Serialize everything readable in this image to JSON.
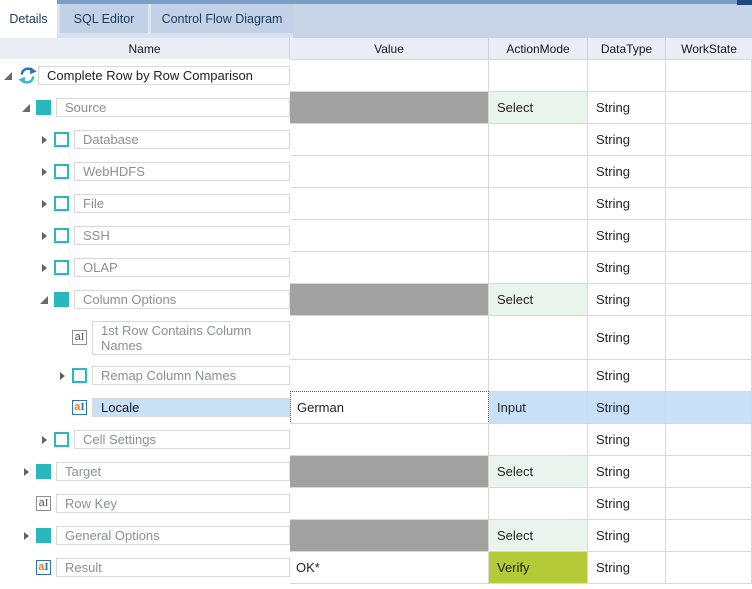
{
  "tabs": [
    {
      "label": "Details",
      "active": true
    },
    {
      "label": "SQL Editor",
      "active": false
    },
    {
      "label": "Control Flow Diagram",
      "active": false
    }
  ],
  "table": {
    "columns": [
      "Name",
      "Value",
      "ActionMode",
      "DataType",
      "WorkState"
    ],
    "rows": [
      {
        "name": "Complete Row by Row Comparison",
        "level": 0,
        "icon": "refresh",
        "expander": "expanded",
        "value": "",
        "value_style": "plain",
        "action_mode": "",
        "action_style": "none",
        "data_type": "",
        "work_state": "",
        "selected": false,
        "emphasis": true,
        "tall": false
      },
      {
        "name": "Source",
        "level": 1,
        "icon": "module-filled",
        "expander": "expanded",
        "value": "",
        "value_style": "gray",
        "action_mode": "Select",
        "action_style": "select",
        "data_type": "String",
        "work_state": "",
        "selected": false,
        "emphasis": false,
        "tall": false
      },
      {
        "name": "Database",
        "level": 2,
        "icon": "module-outline",
        "expander": "collapsed",
        "value": "",
        "value_style": "plain",
        "action_mode": "",
        "action_style": "none",
        "data_type": "String",
        "work_state": "",
        "selected": false,
        "emphasis": false,
        "tall": false
      },
      {
        "name": "WebHDFS",
        "level": 2,
        "icon": "module-outline",
        "expander": "collapsed",
        "value": "",
        "value_style": "plain",
        "action_mode": "",
        "action_style": "none",
        "data_type": "String",
        "work_state": "",
        "selected": false,
        "emphasis": false,
        "tall": false
      },
      {
        "name": "File",
        "level": 2,
        "icon": "module-outline",
        "expander": "collapsed",
        "value": "",
        "value_style": "plain",
        "action_mode": "",
        "action_style": "none",
        "data_type": "String",
        "work_state": "",
        "selected": false,
        "emphasis": false,
        "tall": false
      },
      {
        "name": "SSH",
        "level": 2,
        "icon": "module-outline",
        "expander": "collapsed",
        "value": "",
        "value_style": "plain",
        "action_mode": "",
        "action_style": "none",
        "data_type": "String",
        "work_state": "",
        "selected": false,
        "emphasis": false,
        "tall": false
      },
      {
        "name": "OLAP",
        "level": 2,
        "icon": "module-outline",
        "expander": "collapsed",
        "value": "",
        "value_style": "plain",
        "action_mode": "",
        "action_style": "none",
        "data_type": "String",
        "work_state": "",
        "selected": false,
        "emphasis": false,
        "tall": false
      },
      {
        "name": "Column Options",
        "level": 2,
        "icon": "module-filled",
        "expander": "expanded",
        "value": "",
        "value_style": "gray",
        "action_mode": "Select",
        "action_style": "select",
        "data_type": "String",
        "work_state": "",
        "selected": false,
        "emphasis": false,
        "tall": false
      },
      {
        "name": "1st Row Contains Column Names",
        "level": 3,
        "icon": "value-attribute",
        "expander": "none",
        "value": "",
        "value_style": "plain",
        "action_mode": "",
        "action_style": "none",
        "data_type": "String",
        "work_state": "",
        "selected": false,
        "emphasis": false,
        "tall": true
      },
      {
        "name": "Remap Column Names",
        "level": 3,
        "icon": "module-outline",
        "expander": "collapsed",
        "value": "",
        "value_style": "plain",
        "action_mode": "",
        "action_style": "none",
        "data_type": "String",
        "work_state": "",
        "selected": false,
        "emphasis": false,
        "tall": false
      },
      {
        "name": "Locale",
        "level": 3,
        "icon": "value-attribute-active",
        "expander": "none",
        "value": "German",
        "value_style": "edit",
        "action_mode": "Input",
        "action_style": "none",
        "data_type": "String",
        "work_state": "",
        "selected": true,
        "emphasis": false,
        "tall": false
      },
      {
        "name": "Cell Settings",
        "level": 2,
        "icon": "module-outline",
        "expander": "collapsed",
        "value": "",
        "value_style": "plain",
        "action_mode": "",
        "action_style": "none",
        "data_type": "String",
        "work_state": "",
        "selected": false,
        "emphasis": false,
        "tall": false
      },
      {
        "name": "Target",
        "level": 1,
        "icon": "module-filled",
        "expander": "collapsed",
        "value": "",
        "value_style": "gray",
        "action_mode": "Select",
        "action_style": "select",
        "data_type": "String",
        "work_state": "",
        "selected": false,
        "emphasis": false,
        "tall": false
      },
      {
        "name": "Row Key",
        "level": 1,
        "icon": "value-attribute",
        "expander": "none",
        "value": "",
        "value_style": "plain",
        "action_mode": "",
        "action_style": "none",
        "data_type": "String",
        "work_state": "",
        "selected": false,
        "emphasis": false,
        "tall": false
      },
      {
        "name": "General Options",
        "level": 1,
        "icon": "module-filled",
        "expander": "collapsed",
        "value": "",
        "value_style": "gray",
        "action_mode": "Select",
        "action_style": "select",
        "data_type": "String",
        "work_state": "",
        "selected": false,
        "emphasis": false,
        "tall": false
      },
      {
        "name": "Result",
        "level": 1,
        "icon": "value-attribute-active",
        "expander": "none",
        "value": "OK*",
        "value_style": "plain",
        "action_mode": "Verify",
        "action_style": "verify",
        "data_type": "String",
        "work_state": "",
        "selected": false,
        "emphasis": false,
        "tall": false
      }
    ]
  },
  "colors": {
    "teal": "#2ab7be",
    "value_gray": "#a2a2a2",
    "select_green": "#e9f5ec",
    "verify_green": "#b4ca36",
    "selection_blue": "#c9e1f6",
    "header_bg": "#e9eef5",
    "tab_bar_bg": "#d8e3f0",
    "tab_area_bg": "#c6d4e6",
    "tab_inactive_bg": "#c2d1e5",
    "tab_active_bg": "#ffffff",
    "tab_text": "#1c3c60",
    "top_strip": "#7d9ec6",
    "top_strip_dark": "#1a4a7e",
    "grid_border": "#d8d8d8",
    "text_gray": "#8b8f93",
    "icon_orange": "#e87d2a",
    "icon_blue": "#2e75b6",
    "sync_blue": "#2d6fb5",
    "sync_teal": "#38b6c9"
  }
}
